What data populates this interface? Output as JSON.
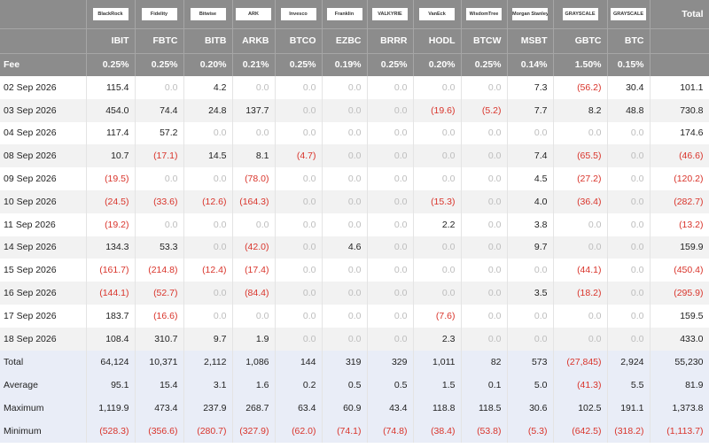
{
  "header": {
    "logos": [
      "BlackRock",
      "Fidelity",
      "Bitwise",
      "ARK",
      "Invesco",
      "Franklin",
      "VALKYRIE",
      "VanEck",
      "WisdomTree",
      "Morgan Stanley",
      "GRAYSCALE",
      "GRAYSCALE"
    ],
    "total_label": "Total",
    "tickers": [
      "IBIT",
      "FBTC",
      "BITB",
      "ARKB",
      "BTCO",
      "EZBC",
      "BRRR",
      "HODL",
      "BTCW",
      "MSBT",
      "GBTC",
      "BTC"
    ]
  },
  "fee": {
    "label": "Fee",
    "values": [
      "0.25%",
      "0.25%",
      "0.20%",
      "0.21%",
      "0.25%",
      "0.19%",
      "0.25%",
      "0.20%",
      "0.25%",
      "0.14%",
      "1.50%",
      "0.15%"
    ]
  },
  "rows": [
    {
      "date": "02 Sep 2026",
      "cells": [
        "115.4",
        "0.0",
        "4.2",
        "0.0",
        "0.0",
        "0.0",
        "0.0",
        "0.0",
        "0.0",
        "7.3",
        "(56.2)",
        "30.4",
        "101.1"
      ]
    },
    {
      "date": "03 Sep 2026",
      "cells": [
        "454.0",
        "74.4",
        "24.8",
        "137.7",
        "0.0",
        "0.0",
        "0.0",
        "(19.6)",
        "(5.2)",
        "7.7",
        "8.2",
        "48.8",
        "730.8"
      ]
    },
    {
      "date": "04 Sep 2026",
      "cells": [
        "117.4",
        "57.2",
        "0.0",
        "0.0",
        "0.0",
        "0.0",
        "0.0",
        "0.0",
        "0.0",
        "0.0",
        "0.0",
        "0.0",
        "174.6"
      ]
    },
    {
      "date": "08 Sep 2026",
      "cells": [
        "10.7",
        "(17.1)",
        "14.5",
        "8.1",
        "(4.7)",
        "0.0",
        "0.0",
        "0.0",
        "0.0",
        "7.4",
        "(65.5)",
        "0.0",
        "(46.6)"
      ]
    },
    {
      "date": "09 Sep 2026",
      "cells": [
        "(19.5)",
        "0.0",
        "0.0",
        "(78.0)",
        "0.0",
        "0.0",
        "0.0",
        "0.0",
        "0.0",
        "4.5",
        "(27.2)",
        "0.0",
        "(120.2)"
      ]
    },
    {
      "date": "10 Sep 2026",
      "cells": [
        "(24.5)",
        "(33.6)",
        "(12.6)",
        "(164.3)",
        "0.0",
        "0.0",
        "0.0",
        "(15.3)",
        "0.0",
        "4.0",
        "(36.4)",
        "0.0",
        "(282.7)"
      ]
    },
    {
      "date": "11 Sep 2026",
      "cells": [
        "(19.2)",
        "0.0",
        "0.0",
        "0.0",
        "0.0",
        "0.0",
        "0.0",
        "2.2",
        "0.0",
        "3.8",
        "0.0",
        "0.0",
        "(13.2)"
      ]
    },
    {
      "date": "14 Sep 2026",
      "cells": [
        "134.3",
        "53.3",
        "0.0",
        "(42.0)",
        "0.0",
        "4.6",
        "0.0",
        "0.0",
        "0.0",
        "9.7",
        "0.0",
        "0.0",
        "159.9"
      ]
    },
    {
      "date": "15 Sep 2026",
      "cells": [
        "(161.7)",
        "(214.8)",
        "(12.4)",
        "(17.4)",
        "0.0",
        "0.0",
        "0.0",
        "0.0",
        "0.0",
        "0.0",
        "(44.1)",
        "0.0",
        "(450.4)"
      ]
    },
    {
      "date": "16 Sep 2026",
      "cells": [
        "(144.1)",
        "(52.7)",
        "0.0",
        "(84.4)",
        "0.0",
        "0.0",
        "0.0",
        "0.0",
        "0.0",
        "3.5",
        "(18.2)",
        "0.0",
        "(295.9)"
      ]
    },
    {
      "date": "17 Sep 2026",
      "cells": [
        "183.7",
        "(16.6)",
        "0.0",
        "0.0",
        "0.0",
        "0.0",
        "0.0",
        "(7.6)",
        "0.0",
        "0.0",
        "0.0",
        "0.0",
        "159.5"
      ]
    },
    {
      "date": "18 Sep 2026",
      "cells": [
        "108.4",
        "310.7",
        "9.7",
        "1.9",
        "0.0",
        "0.0",
        "0.0",
        "2.3",
        "0.0",
        "0.0",
        "0.0",
        "0.0",
        "433.0"
      ]
    }
  ],
  "summary": [
    {
      "label": "Total",
      "cells": [
        "64,124",
        "10,371",
        "2,112",
        "1,086",
        "144",
        "319",
        "329",
        "1,011",
        "82",
        "573",
        "(27,845)",
        "2,924",
        "55,230"
      ]
    },
    {
      "label": "Average",
      "cells": [
        "95.1",
        "15.4",
        "3.1",
        "1.6",
        "0.2",
        "0.5",
        "0.5",
        "1.5",
        "0.1",
        "5.0",
        "(41.3)",
        "5.5",
        "81.9"
      ]
    },
    {
      "label": "Maximum",
      "cells": [
        "1,119.9",
        "473.4",
        "237.9",
        "268.7",
        "63.4",
        "60.9",
        "43.4",
        "118.8",
        "118.5",
        "30.6",
        "102.5",
        "191.1",
        "1,373.8"
      ]
    },
    {
      "label": "Minimum",
      "cells": [
        "(528.3)",
        "(356.6)",
        "(280.7)",
        "(327.9)",
        "(62.0)",
        "(74.1)",
        "(74.8)",
        "(38.4)",
        "(53.8)",
        "(5.3)",
        "(642.5)",
        "(318.2)",
        "(1,113.7)"
      ]
    }
  ]
}
